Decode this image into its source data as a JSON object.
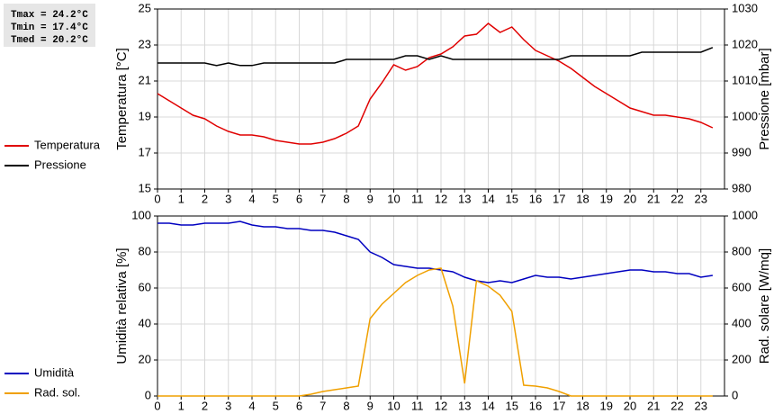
{
  "stats": [
    "Tmax = 24.2°C",
    "Tmin = 17.4°C",
    "Tmed = 20.2°C"
  ],
  "chart_data": [
    {
      "type": "line",
      "ylabel": "Temperatura [°C]",
      "y2label": "Pressione [mbar]",
      "x": [
        0,
        0.5,
        1,
        1.5,
        2,
        2.5,
        3,
        3.5,
        4,
        4.5,
        5,
        5.5,
        6,
        6.5,
        7,
        7.5,
        8,
        8.5,
        9,
        9.5,
        10,
        10.5,
        11,
        11.5,
        12,
        12.5,
        13,
        13.5,
        14,
        14.5,
        15,
        15.5,
        16,
        16.5,
        17,
        17.5,
        18,
        18.5,
        19,
        19.5,
        20,
        20.5,
        21,
        21.5,
        22,
        22.5,
        23,
        23.5
      ],
      "xlim": [
        0,
        24
      ],
      "xticks": [
        0,
        1,
        2,
        3,
        4,
        5,
        6,
        7,
        8,
        9,
        10,
        11,
        12,
        13,
        14,
        15,
        16,
        17,
        18,
        19,
        20,
        21,
        22,
        23
      ],
      "ylim": [
        15,
        25
      ],
      "yticks": [
        15,
        17,
        19,
        21,
        23,
        25
      ],
      "y2lim": [
        980,
        1030
      ],
      "y2ticks": [
        980,
        990,
        1000,
        1010,
        1020,
        1030
      ],
      "grid": true,
      "legend": "left",
      "series": [
        {
          "name": "Temperatura",
          "color": "#e00000",
          "values": [
            20.3,
            19.9,
            19.5,
            19.1,
            18.9,
            18.5,
            18.2,
            18.0,
            18.0,
            17.9,
            17.7,
            17.6,
            17.5,
            17.5,
            17.6,
            17.8,
            18.1,
            18.5,
            20.0,
            20.9,
            21.9,
            21.6,
            21.8,
            22.3,
            22.5,
            22.9,
            23.5,
            23.6,
            24.2,
            23.7,
            24.0,
            23.3,
            22.7,
            22.4,
            22.1,
            21.7,
            21.2,
            20.7,
            20.3,
            19.9,
            19.5,
            19.3,
            19.1,
            19.1,
            19.0,
            18.9,
            18.7,
            18.4
          ]
        },
        {
          "name": "Pressione",
          "color": "#000000",
          "axis": "y2",
          "values": [
            1015,
            1015,
            1015,
            1015,
            1015,
            1014.3,
            1015,
            1014.3,
            1014.3,
            1015,
            1015,
            1015,
            1015,
            1015,
            1015,
            1015,
            1016,
            1016,
            1016,
            1016,
            1016,
            1017,
            1017,
            1016,
            1017,
            1016,
            1016,
            1016,
            1016,
            1016,
            1016,
            1016,
            1016,
            1016,
            1016,
            1017,
            1017,
            1017,
            1017,
            1017,
            1017,
            1018,
            1018,
            1018,
            1018,
            1018,
            1018,
            1019.3
          ]
        }
      ]
    },
    {
      "type": "line",
      "ylabel": "Umidità relativa [%]",
      "y2label": "Rad. solare [W/mq]",
      "x": [
        0,
        0.5,
        1,
        1.5,
        2,
        2.5,
        3,
        3.5,
        4,
        4.5,
        5,
        5.5,
        6,
        6.5,
        7,
        7.5,
        8,
        8.5,
        9,
        9.5,
        10,
        10.5,
        11,
        11.5,
        12,
        12.5,
        13,
        13.5,
        14,
        14.5,
        15,
        15.5,
        16,
        16.5,
        17,
        17.5,
        18,
        18.5,
        19,
        19.5,
        20,
        20.5,
        21,
        21.5,
        22,
        22.5,
        23,
        23.5
      ],
      "xlim": [
        0,
        24
      ],
      "xticks": [
        0,
        1,
        2,
        3,
        4,
        5,
        6,
        7,
        8,
        9,
        10,
        11,
        12,
        13,
        14,
        15,
        16,
        17,
        18,
        19,
        20,
        21,
        22,
        23
      ],
      "ylim": [
        0,
        100
      ],
      "yticks": [
        0,
        20,
        40,
        60,
        80,
        100
      ],
      "y2lim": [
        0,
        1000
      ],
      "y2ticks": [
        0,
        200,
        400,
        600,
        800,
        1000
      ],
      "grid": true,
      "legend": "left",
      "series": [
        {
          "name": "Umidità",
          "color": "#0000c0",
          "values": [
            96,
            96,
            95,
            95,
            96,
            96,
            96,
            97,
            95,
            94,
            94,
            93,
            93,
            92,
            92,
            91,
            89,
            87,
            80,
            77,
            73,
            72,
            71,
            71,
            70,
            69,
            66,
            64,
            63,
            64,
            63,
            65,
            67,
            66,
            66,
            65,
            66,
            67,
            68,
            69,
            70,
            70,
            69,
            69,
            68,
            68,
            66,
            67
          ]
        },
        {
          "name": "Rad. sol.",
          "color": "#f0a000",
          "axis": "y2",
          "values": [
            0,
            0,
            0,
            0,
            0,
            0,
            0,
            0,
            0,
            0,
            0,
            0,
            0,
            10,
            25,
            35,
            45,
            55,
            430,
            510,
            570,
            630,
            670,
            700,
            710,
            500,
            70,
            640,
            610,
            560,
            470,
            60,
            55,
            45,
            25,
            0,
            0,
            0,
            0,
            0,
            0,
            0,
            0,
            0,
            0,
            0,
            0,
            0
          ]
        }
      ]
    }
  ]
}
